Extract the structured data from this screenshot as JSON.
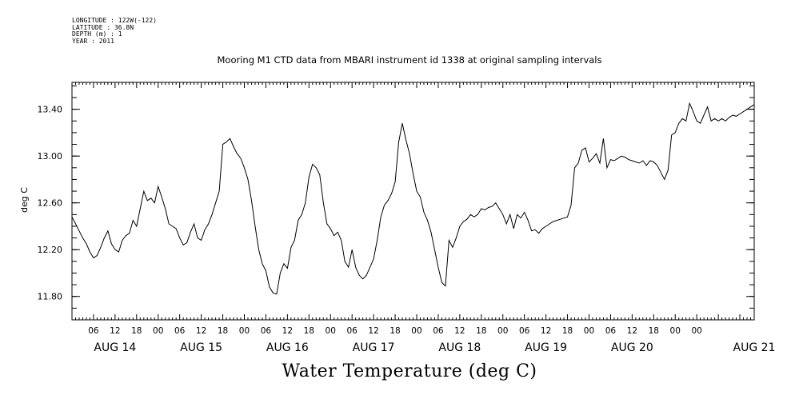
{
  "meta": {
    "longitude": "LONGITUDE : 122W(-122)",
    "latitude": "LATITUDE : 36.8N",
    "depth": "DEPTH (m) : 1",
    "year": "YEAR : 2011"
  },
  "chart_data": {
    "type": "line",
    "title": "Mooring M1 CTD data from MBARI instrument id 1338 at original sampling intervals",
    "xlabel": "Water Temperature (deg C)",
    "ylabel": "deg C",
    "xlim_hours": [
      0,
      190
    ],
    "ylim": [
      11.6,
      13.63
    ],
    "yticks": [
      {
        "value": 11.8,
        "label": "11.80"
      },
      {
        "value": 12.2,
        "label": "12.20"
      },
      {
        "value": 12.6,
        "label": "12.60"
      },
      {
        "value": 13.0,
        "label": "13.00"
      },
      {
        "value": 13.4,
        "label": "13.40"
      }
    ],
    "hour_ticks": [
      "06",
      "12",
      "18",
      "00",
      "06",
      "12",
      "18",
      "00",
      "06",
      "12",
      "18",
      "00",
      "06",
      "12",
      "18",
      "00",
      "06",
      "12",
      "18",
      "00",
      "06",
      "12",
      "18",
      "00",
      "06",
      "12",
      "18",
      "00",
      "00"
    ],
    "day_labels": [
      "AUG 14",
      "AUG 15",
      "AUG 16",
      "AUG 17",
      "AUG 18",
      "AUG 19",
      "AUG 20",
      "AUG 21"
    ],
    "series": [
      {
        "x": [
          0,
          1,
          2,
          3,
          4,
          5,
          6,
          7,
          8,
          9,
          10,
          11,
          12,
          13,
          14,
          15,
          16,
          17,
          18,
          19,
          20,
          21,
          22,
          23,
          24,
          25,
          26,
          27,
          28,
          29,
          30,
          31,
          32,
          33,
          34,
          35,
          36,
          37,
          38,
          39,
          40,
          41,
          42,
          43,
          44,
          45,
          46,
          47,
          48,
          49,
          50,
          51,
          52,
          53,
          54,
          55,
          56,
          57,
          58,
          59,
          60,
          61,
          62,
          63,
          64,
          65,
          66,
          67,
          68,
          69,
          70,
          71,
          72,
          73,
          74,
          75,
          76,
          77,
          78,
          79,
          80,
          81,
          82,
          83,
          84,
          85,
          86,
          87,
          88,
          89,
          90,
          91,
          92,
          93,
          94,
          95,
          96,
          97,
          98,
          99,
          100,
          101,
          102,
          103,
          104,
          105,
          106,
          107,
          108,
          109,
          110,
          111,
          112,
          113,
          114,
          115,
          116,
          117,
          118,
          119,
          120,
          121,
          122,
          123,
          124,
          125,
          126,
          127,
          128,
          129,
          130,
          131,
          132,
          133,
          134,
          135,
          136,
          137,
          138,
          139,
          140,
          141,
          142,
          143,
          144,
          145,
          146,
          147,
          148,
          149,
          150,
          151,
          152,
          153,
          154,
          155,
          156,
          157,
          158,
          159,
          160,
          161,
          162,
          163,
          164,
          165,
          166,
          167,
          168,
          169,
          170,
          171,
          172,
          173,
          174,
          175,
          176,
          177,
          178,
          179,
          180,
          181,
          182,
          183,
          184,
          185,
          186,
          187,
          188,
          189,
          190
        ],
        "values": [
          12.48,
          12.42,
          12.36,
          12.3,
          12.25,
          12.18,
          12.13,
          12.15,
          12.22,
          12.3,
          12.36,
          12.25,
          12.2,
          12.18,
          12.28,
          12.32,
          12.34,
          12.45,
          12.4,
          12.55,
          12.7,
          12.62,
          12.64,
          12.6,
          12.74,
          12.65,
          12.55,
          12.42,
          12.4,
          12.38,
          12.3,
          12.24,
          12.26,
          12.35,
          12.42,
          12.3,
          12.28,
          12.37,
          12.42,
          12.5,
          12.6,
          12.7,
          13.1,
          13.12,
          13.15,
          13.08,
          13.02,
          12.98,
          12.9,
          12.8,
          12.62,
          12.4,
          12.2,
          12.08,
          12.02,
          11.88,
          11.83,
          11.82,
          12.0,
          12.08,
          12.04,
          12.22,
          12.28,
          12.45,
          12.5,
          12.6,
          12.82,
          12.93,
          12.9,
          12.84,
          12.6,
          12.42,
          12.38,
          12.32,
          12.35,
          12.28,
          12.1,
          12.05,
          12.2,
          12.05,
          11.98,
          11.95,
          11.98,
          12.05,
          12.12,
          12.28,
          12.48,
          12.58,
          12.62,
          12.68,
          12.78,
          13.12,
          13.28,
          13.14,
          13.02,
          12.85,
          12.7,
          12.65,
          12.52,
          12.45,
          12.35,
          12.2,
          12.05,
          11.92,
          11.89,
          12.28,
          12.22,
          12.3,
          12.4,
          12.44,
          12.46,
          12.5,
          12.48,
          12.5,
          12.55,
          12.54,
          12.56,
          12.57,
          12.6,
          12.55,
          12.5,
          12.42,
          12.5,
          12.38,
          12.5,
          12.47,
          12.52,
          12.45,
          12.36,
          12.37,
          12.34,
          12.38,
          12.4,
          12.42,
          12.44,
          12.45,
          12.46,
          12.47,
          12.48,
          12.58,
          12.9,
          12.94,
          13.05,
          13.07,
          12.95,
          12.98,
          13.02,
          12.94,
          13.15,
          12.9,
          12.97,
          12.96,
          12.98,
          13.0,
          12.99,
          12.97,
          12.96,
          12.95,
          12.94,
          12.96,
          12.92,
          12.96,
          12.95,
          12.92,
          12.86,
          12.8,
          12.88,
          13.18,
          13.2,
          13.28,
          13.32,
          13.3,
          13.45,
          13.38,
          13.3,
          13.28,
          13.35,
          13.42,
          13.3,
          13.32,
          13.3,
          13.32,
          13.3,
          13.33,
          13.35,
          13.34,
          13.36,
          13.38,
          13.4,
          13.42,
          13.44
        ]
      }
    ]
  }
}
